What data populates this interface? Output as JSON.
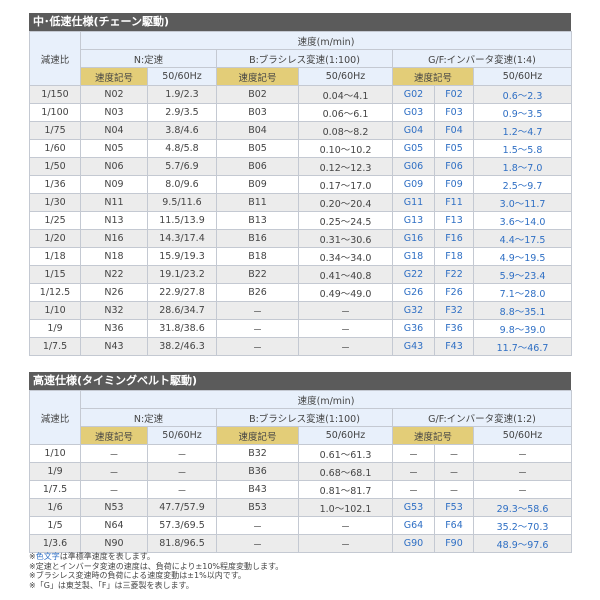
{
  "tables": [
    {
      "title": "中･低速仕様(チェーン駆動)",
      "ratio_label": "減速比",
      "speed_label": "速度(m/min)",
      "group_n": "N:定速",
      "group_b": "B:ブラシレス変速(1:100)",
      "group_gf": "G/F:インバータ変速(1:4)",
      "code_label": "速度記号",
      "hz_label": "50/60Hz",
      "rows": [
        [
          "1/150",
          "N02",
          "1.9/2.3",
          "B02",
          "0.04～4.1",
          "G02",
          "F02",
          "0.6～2.3"
        ],
        [
          "1/100",
          "N03",
          "2.9/3.5",
          "B03",
          "0.06～6.1",
          "G03",
          "F03",
          "0.9～3.5"
        ],
        [
          "1/75",
          "N04",
          "3.8/4.6",
          "B04",
          "0.08～8.2",
          "G04",
          "F04",
          "1.2～4.7"
        ],
        [
          "1/60",
          "N05",
          "4.8/5.8",
          "B05",
          "0.10～10.2",
          "G05",
          "F05",
          "1.5～5.8"
        ],
        [
          "1/50",
          "N06",
          "5.7/6.9",
          "B06",
          "0.12～12.3",
          "G06",
          "F06",
          "1.8～7.0"
        ],
        [
          "1/36",
          "N09",
          "8.0/9.6",
          "B09",
          "0.17～17.0",
          "G09",
          "F09",
          "2.5～9.7"
        ],
        [
          "1/30",
          "N11",
          "9.5/11.6",
          "B11",
          "0.20～20.4",
          "G11",
          "F11",
          "3.0～11.7"
        ],
        [
          "1/25",
          "N13",
          "11.5/13.9",
          "B13",
          "0.25～24.5",
          "G13",
          "F13",
          "3.6～14.0"
        ],
        [
          "1/20",
          "N16",
          "14.3/17.4",
          "B16",
          "0.31～30.6",
          "G16",
          "F16",
          "4.4～17.5"
        ],
        [
          "1/18",
          "N18",
          "15.9/19.3",
          "B18",
          "0.34～34.0",
          "G18",
          "F18",
          "4.9～19.5"
        ],
        [
          "1/15",
          "N22",
          "19.1/23.2",
          "B22",
          "0.41～40.8",
          "G22",
          "F22",
          "5.9～23.4"
        ],
        [
          "1/12.5",
          "N26",
          "22.9/27.8",
          "B26",
          "0.49～49.0",
          "G26",
          "F26",
          "7.1～28.0"
        ],
        [
          "1/10",
          "N32",
          "28.6/34.7",
          "－",
          "－",
          "G32",
          "F32",
          "8.8～35.1"
        ],
        [
          "1/9",
          "N36",
          "31.8/38.6",
          "－",
          "－",
          "G36",
          "F36",
          "9.8～39.0"
        ],
        [
          "1/7.5",
          "N43",
          "38.2/46.3",
          "－",
          "－",
          "G43",
          "F43",
          "11.7～46.7"
        ]
      ]
    },
    {
      "title": "高速仕様(タイミングベルト駆動)",
      "ratio_label": "減速比",
      "speed_label": "速度(m/min)",
      "group_n": "N:定速",
      "group_b": "B:ブラシレス変速(1:100)",
      "group_gf": "G/F:インバータ変速(1:2)",
      "code_label": "速度記号",
      "hz_label": "50/60Hz",
      "rows": [
        [
          "1/10",
          "－",
          "－",
          "B32",
          "0.61～61.3",
          "－",
          "－",
          "－"
        ],
        [
          "1/9",
          "－",
          "－",
          "B36",
          "0.68～68.1",
          "－",
          "－",
          "－"
        ],
        [
          "1/7.5",
          "－",
          "－",
          "B43",
          "0.81～81.7",
          "－",
          "－",
          "－"
        ],
        [
          "1/6",
          "N53",
          "47.7/57.9",
          "B53",
          "1.0～102.1",
          "G53",
          "F53",
          "29.3～58.6"
        ],
        [
          "1/5",
          "N64",
          "57.3/69.5",
          "－",
          "－",
          "G64",
          "F64",
          "35.2～70.3"
        ],
        [
          "1/3.6",
          "N90",
          "81.8/96.5",
          "－",
          "－",
          "G90",
          "F90",
          "48.9～97.6"
        ]
      ]
    }
  ],
  "notes": {
    "n1_prefix": "※",
    "n1_colored": "色文字",
    "n1_rest": "は準標準速度を表します。",
    "n2": "※定速とインバータ変速の速度は、負荷により±10%程度変動します。",
    "n3": "※ブラシレス変速時の負荷による速度変動は±1%以内です。",
    "n4": "※「G」は東芝製、「F」は三菱製を表します。"
  },
  "colors": {
    "title_bar": "#5b5b5b",
    "header": "#e8f0fb",
    "code_header": "#e3cd78",
    "stripe": "#ececec",
    "standard_speed_text": "#2f6fc4"
  }
}
